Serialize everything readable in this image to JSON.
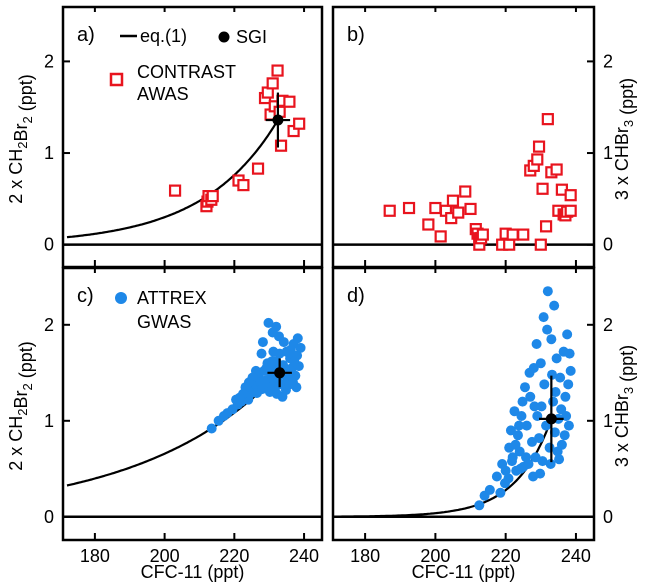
{
  "chart_data": [
    {
      "panel_label": "a)",
      "type": "scatter",
      "ylabel": "2 x CH2Br2 (ppt)",
      "ylabel_parts": {
        "pre": "2 x CH",
        "sub1": "2",
        "mid": "Br",
        "sub2": "2",
        "post": " (ppt)"
      },
      "ylabel_side": "left",
      "yticks": [
        "0",
        "1",
        "2"
      ],
      "xlim": [
        172,
        244
      ],
      "ylim": [
        -0.2,
        2.55
      ],
      "legend": {
        "curve": "eq.(1)",
        "sgi": "SGI",
        "obs_line1": "CONTRAST",
        "obs_line2": "AWAS"
      },
      "series": [
        {
          "name": "CONTRAST AWAS",
          "marker": "open-square",
          "color": "#e8141e",
          "points": [
            [
              203.0,
              0.59
            ],
            [
              212.0,
              0.42
            ],
            [
              212.3,
              0.47
            ],
            [
              212.6,
              0.53
            ],
            [
              213.4,
              0.49
            ],
            [
              213.8,
              0.53
            ],
            [
              221.2,
              0.7
            ],
            [
              222.6,
              0.65
            ],
            [
              226.8,
              0.83
            ],
            [
              228.8,
              1.6
            ],
            [
              229.6,
              1.66
            ],
            [
              230.4,
              1.42
            ],
            [
              231.0,
              1.76
            ],
            [
              231.6,
              1.51
            ],
            [
              232.4,
              1.9
            ],
            [
              233.0,
              1.45
            ],
            [
              233.4,
              1.08
            ],
            [
              233.8,
              1.57
            ],
            [
              235.8,
              1.56
            ],
            [
              237.0,
              1.24
            ],
            [
              238.6,
              1.32
            ]
          ]
        }
      ],
      "curve": {
        "name": "eq.(1)",
        "type": "exp",
        "A": 1.36,
        "x0": 232.5,
        "scale": 21.5
      },
      "sgi": {
        "x": 232.5,
        "y": 1.36,
        "xerr": 3.5,
        "yerr": 0.3
      }
    },
    {
      "panel_label": "b)",
      "type": "scatter",
      "ylabel": "3 x CHBr3 (ppt)",
      "ylabel_parts": {
        "pre": "3 x CHBr",
        "sub1": "3",
        "mid": "",
        "sub2": "",
        "post": " (ppt)"
      },
      "ylabel_side": "right",
      "yticks": [
        "0",
        "1",
        "2"
      ],
      "xlim": [
        172,
        244
      ],
      "ylim": [
        -0.2,
        2.55
      ],
      "series": [
        {
          "name": "CONTRAST AWAS",
          "marker": "open-square",
          "color": "#e8141e",
          "points": [
            [
              187.0,
              0.37
            ],
            [
              192.5,
              0.4
            ],
            [
              198.0,
              0.22
            ],
            [
              200.0,
              0.4
            ],
            [
              201.5,
              0.09
            ],
            [
              203.0,
              0.37
            ],
            [
              204.5,
              0.29
            ],
            [
              205.0,
              0.48
            ],
            [
              206.5,
              0.35
            ],
            [
              208.5,
              0.58
            ],
            [
              210.0,
              0.39
            ],
            [
              211.5,
              0.17
            ],
            [
              212.0,
              0.12
            ],
            [
              212.5,
              0.07
            ],
            [
              212.5,
              0.0
            ],
            [
              213.0,
              0.07
            ],
            [
              213.5,
              0.11
            ],
            [
              219.0,
              0.0
            ],
            [
              220.0,
              0.12
            ],
            [
              221.0,
              0.0
            ],
            [
              222.0,
              0.11
            ],
            [
              225.0,
              0.11
            ],
            [
              227.0,
              0.81
            ],
            [
              228.0,
              0.86
            ],
            [
              229.0,
              0.93
            ],
            [
              229.5,
              1.07
            ],
            [
              230.0,
              0.0
            ],
            [
              230.5,
              0.61
            ],
            [
              231.5,
              0.2
            ],
            [
              232.0,
              1.37
            ],
            [
              233.0,
              0.79
            ],
            [
              234.5,
              0.82
            ],
            [
              235.0,
              0.37
            ],
            [
              236.0,
              0.6
            ],
            [
              236.5,
              0.33
            ],
            [
              237.0,
              0.32
            ],
            [
              237.5,
              0.36
            ],
            [
              238.5,
              0.54
            ],
            [
              238.5,
              0.37
            ]
          ]
        }
      ]
    },
    {
      "panel_label": "c)",
      "type": "scatter",
      "ylabel": "2 x CH2Br2 (ppt)",
      "ylabel_parts": {
        "pre": "2 x CH",
        "sub1": "2",
        "mid": "Br",
        "sub2": "2",
        "post": " (ppt)"
      },
      "ylabel_side": "left",
      "yticks": [
        "0",
        "1",
        "2"
      ],
      "xticks": [
        "180",
        "200",
        "220",
        "240"
      ],
      "xlabel": "CFC-11 (ppt)",
      "xlim": [
        172,
        244
      ],
      "ylim": [
        -0.2,
        2.55
      ],
      "legend": {
        "obs_line1": "ATTREX",
        "obs_line2": "GWAS"
      },
      "series": [
        {
          "name": "ATTREX GWAS",
          "marker": "filled-circle",
          "color": "#1e88e8",
          "points": [
            [
              213.5,
              0.92
            ],
            [
              215.5,
              1.0
            ],
            [
              217.0,
              1.05
            ],
            [
              218.0,
              1.08
            ],
            [
              219.5,
              1.12
            ],
            [
              221.0,
              1.17
            ],
            [
              222.0,
              1.2
            ],
            [
              223.0,
              1.25
            ],
            [
              223.5,
              1.3
            ],
            [
              224.0,
              1.22
            ],
            [
              224.5,
              1.28
            ],
            [
              225.0,
              1.35
            ],
            [
              225.5,
              1.31
            ],
            [
              226.0,
              1.38
            ],
            [
              226.5,
              1.29
            ],
            [
              227.0,
              1.45
            ],
            [
              227.5,
              1.4
            ],
            [
              228.0,
              1.33
            ],
            [
              228.5,
              1.52
            ],
            [
              229.0,
              1.42
            ],
            [
              229.5,
              1.6
            ],
            [
              230.0,
              1.35
            ],
            [
              230.5,
              1.48
            ],
            [
              231.0,
              1.55
            ],
            [
              231.5,
              1.4
            ],
            [
              232.0,
              1.62
            ],
            [
              232.5,
              1.45
            ],
            [
              233.0,
              1.7
            ],
            [
              233.5,
              1.38
            ],
            [
              234.0,
              1.58
            ],
            [
              234.5,
              1.5
            ],
            [
              235.0,
              1.72
            ],
            [
              235.5,
              1.42
            ],
            [
              236.0,
              1.65
            ],
            [
              236.5,
              1.55
            ],
            [
              237.0,
              1.8
            ],
            [
              237.5,
              1.47
            ],
            [
              238.0,
              1.68
            ],
            [
              238.5,
              1.57
            ],
            [
              239.0,
              1.76
            ],
            [
              227.8,
              1.7
            ],
            [
              228.2,
              1.82
            ],
            [
              229.2,
              1.55
            ],
            [
              229.8,
              2.02
            ],
            [
              230.8,
              1.62
            ],
            [
              231.2,
              1.72
            ],
            [
              232.8,
              1.88
            ],
            [
              233.2,
              1.57
            ],
            [
              234.2,
              1.82
            ],
            [
              235.2,
              1.45
            ],
            [
              236.2,
              1.74
            ],
            [
              237.2,
              1.62
            ],
            [
              238.2,
              1.86
            ],
            [
              226.2,
              1.52
            ],
            [
              225.2,
              1.45
            ],
            [
              224.2,
              1.4
            ],
            [
              223.2,
              1.35
            ],
            [
              222.5,
              1.28
            ],
            [
              221.5,
              1.24
            ],
            [
              220.5,
              1.22
            ],
            [
              230.2,
              1.3
            ],
            [
              231.8,
              1.35
            ],
            [
              232.2,
              1.28
            ],
            [
              233.8,
              1.25
            ],
            [
              234.8,
              1.32
            ],
            [
              235.8,
              1.38
            ],
            [
              236.8,
              1.4
            ],
            [
              237.8,
              1.35
            ],
            [
              231.0,
              1.92
            ],
            [
              232.0,
              1.98
            ]
          ]
        }
      ],
      "curve": {
        "name": "eq.(1)",
        "type": "exp",
        "A": 1.5,
        "x0": 233.0,
        "scale": 40.0
      },
      "sgi": {
        "x": 233.0,
        "y": 1.5,
        "xerr": 3.5,
        "yerr": 0.15
      }
    },
    {
      "panel_label": "d)",
      "type": "scatter",
      "ylabel": "3 x CHBr3 (ppt)",
      "ylabel_parts": {
        "pre": "3 x CHBr",
        "sub1": "3",
        "mid": "",
        "sub2": "",
        "post": " (ppt)"
      },
      "ylabel_side": "right",
      "yticks": [
        "0",
        "1",
        "2"
      ],
      "xticks": [
        "180",
        "200",
        "220",
        "240"
      ],
      "xlabel": "CFC-11 (ppt)",
      "xlim": [
        172,
        244
      ],
      "ylim": [
        -0.2,
        2.55
      ],
      "series": [
        {
          "name": "ATTREX GWAS",
          "marker": "filled-circle",
          "color": "#1e88e8",
          "points": [
            [
              212.5,
              0.12
            ],
            [
              214.0,
              0.22
            ],
            [
              215.5,
              0.28
            ],
            [
              217.5,
              0.42
            ],
            [
              219.0,
              0.55
            ],
            [
              220.0,
              0.48
            ],
            [
              221.0,
              0.72
            ],
            [
              221.5,
              0.9
            ],
            [
              222.0,
              0.62
            ],
            [
              222.5,
              1.1
            ],
            [
              223.0,
              0.48
            ],
            [
              223.5,
              0.85
            ],
            [
              224.0,
              0.68
            ],
            [
              224.5,
              1.05
            ],
            [
              225.0,
              0.52
            ],
            [
              225.5,
              1.35
            ],
            [
              226.0,
              0.95
            ],
            [
              226.5,
              0.55
            ],
            [
              227.0,
              1.25
            ],
            [
              227.5,
              0.78
            ],
            [
              228.0,
              1.55
            ],
            [
              228.5,
              0.62
            ],
            [
              229.0,
              1.05
            ],
            [
              229.5,
              0.82
            ],
            [
              230.0,
              1.6
            ],
            [
              230.5,
              0.58
            ],
            [
              231.0,
              1.38
            ],
            [
              231.5,
              0.95
            ],
            [
              232.0,
              2.35
            ],
            [
              232.5,
              0.72
            ],
            [
              233.0,
              1.85
            ],
            [
              233.5,
              1.2
            ],
            [
              234.0,
              0.88
            ],
            [
              234.5,
              1.65
            ],
            [
              235.0,
              1.02
            ],
            [
              235.5,
              1.45
            ],
            [
              236.0,
              0.75
            ],
            [
              236.5,
              1.72
            ],
            [
              237.0,
              1.25
            ],
            [
              237.5,
              1.9
            ],
            [
              238.0,
              0.95
            ],
            [
              238.5,
              1.52
            ],
            [
              230.8,
              2.08
            ],
            [
              233.8,
              2.2
            ],
            [
              228.8,
              1.8
            ],
            [
              226.8,
              1.5
            ],
            [
              224.8,
              1.2
            ],
            [
              223.8,
              0.95
            ],
            [
              222.8,
              0.75
            ],
            [
              221.8,
              0.58
            ],
            [
              220.8,
              0.4
            ],
            [
              219.8,
              0.35
            ],
            [
              218.5,
              0.25
            ],
            [
              231.8,
              1.95
            ],
            [
              235.8,
              1.12
            ],
            [
              237.8,
              1.38
            ],
            [
              236.8,
              0.85
            ],
            [
              234.8,
              0.68
            ],
            [
              232.8,
              0.55
            ],
            [
              229.8,
              0.45
            ],
            [
              227.8,
              0.42
            ],
            [
              225.8,
              0.62
            ],
            [
              224.2,
              0.5
            ],
            [
              230.2,
              1.15
            ],
            [
              233.2,
              1.48
            ],
            [
              235.2,
              0.6
            ],
            [
              237.2,
              1.05
            ],
            [
              238.2,
              1.7
            ],
            [
              234.2,
              1.3
            ],
            [
              228.2,
              1.15
            ]
          ]
        }
      ],
      "curve": {
        "name": "eq.(1)",
        "type": "exp",
        "A": 1.02,
        "x0": 233.0,
        "scale": 10.0
      },
      "sgi": {
        "x": 233.0,
        "y": 1.02,
        "xerr": 3.5,
        "yerr": 0.45
      }
    }
  ]
}
